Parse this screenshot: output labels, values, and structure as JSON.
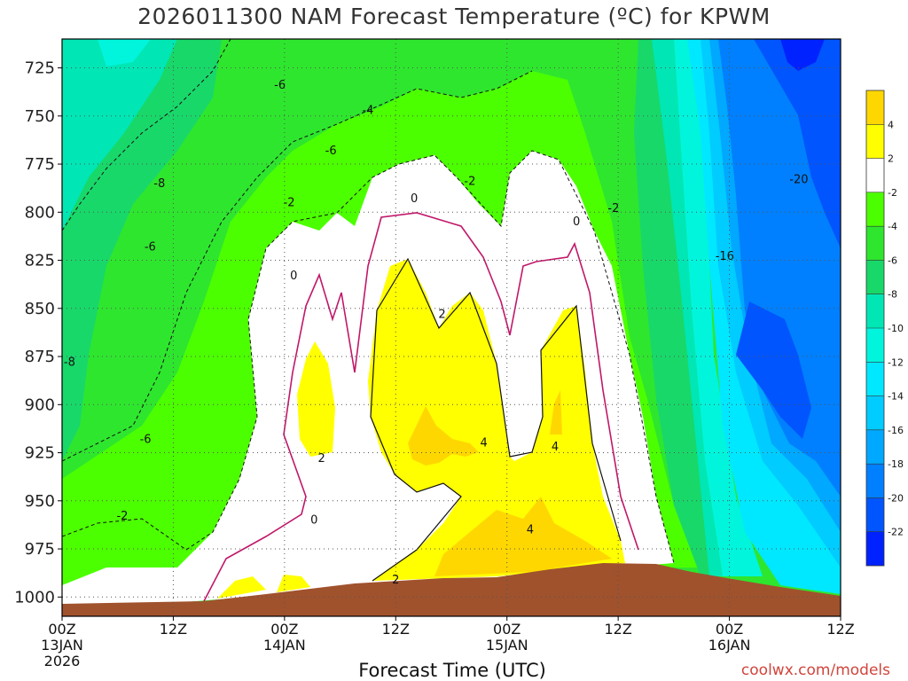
{
  "chart_data": {
    "type": "heatmap",
    "title": "2026011300 NAM Forecast Temperature (ºC) for KPWM",
    "xlabel": "Forecast Time (UTC)",
    "ylabel": "",
    "credit": "coolwx.com/models",
    "y_axis": {
      "range": [
        710,
        1010
      ],
      "ticks": [
        725,
        750,
        775,
        800,
        825,
        850,
        875,
        900,
        925,
        950,
        975,
        1000
      ],
      "inverted": true
    },
    "x_axis": {
      "range_hours": [
        0,
        84
      ],
      "ticks": [
        {
          "hour": 0,
          "lines": [
            "00Z",
            "13JAN",
            "2026"
          ]
        },
        {
          "hour": 12,
          "lines": [
            "12Z"
          ]
        },
        {
          "hour": 24,
          "lines": [
            "00Z",
            "14JAN"
          ]
        },
        {
          "hour": 36,
          "lines": [
            "12Z"
          ]
        },
        {
          "hour": 48,
          "lines": [
            "00Z",
            "15JAN"
          ]
        },
        {
          "hour": 60,
          "lines": [
            "12Z"
          ]
        },
        {
          "hour": 72,
          "lines": [
            "00Z",
            "16JAN"
          ]
        },
        {
          "hour": 84,
          "lines": [
            "12Z"
          ]
        }
      ]
    },
    "grid": true,
    "colorbar": {
      "levels": [
        4,
        2,
        -2,
        -4,
        -6,
        -8,
        -10,
        -12,
        -14,
        -16,
        -18,
        -20,
        -22
      ],
      "colors": [
        "#ffd700",
        "#ffff00",
        "#ffffff",
        "#4cff00",
        "#2ee62e",
        "#18d86a",
        "#00e6b4",
        "#00f5dc",
        "#00e8ff",
        "#00ccff",
        "#00a8ff",
        "#0080ff",
        "#0055ff",
        "#0022ff"
      ]
    },
    "contour_labels": [
      {
        "text": "-6",
        "hour": 9.5,
        "p": 818
      },
      {
        "text": "-8",
        "hour": 10.5,
        "p": 785
      },
      {
        "text": "-8",
        "hour": 0.8,
        "p": 878
      },
      {
        "text": "-6",
        "hour": 9,
        "p": 918
      },
      {
        "text": "-2",
        "hour": 6.5,
        "p": 958
      },
      {
        "text": "-6",
        "hour": 23.5,
        "p": 734
      },
      {
        "text": "-6",
        "hour": 29,
        "p": 768
      },
      {
        "text": "-4",
        "hour": 33,
        "p": 747
      },
      {
        "text": "-2",
        "hour": 24.5,
        "p": 795
      },
      {
        "text": "0",
        "hour": 25,
        "p": 833
      },
      {
        "text": "0",
        "hour": 38,
        "p": 793
      },
      {
        "text": "-2",
        "hour": 44,
        "p": 784
      },
      {
        "text": "0",
        "hour": 55.5,
        "p": 805
      },
      {
        "text": "-2",
        "hour": 59.5,
        "p": 798
      },
      {
        "text": "2",
        "hour": 41,
        "p": 853
      },
      {
        "text": "2",
        "hour": 28,
        "p": 928
      },
      {
        "text": "0",
        "hour": 27.2,
        "p": 960
      },
      {
        "text": "4",
        "hour": 45.5,
        "p": 920
      },
      {
        "text": "4",
        "hour": 53.2,
        "p": 922
      },
      {
        "text": "4",
        "hour": 50.5,
        "p": 965
      },
      {
        "text": "2",
        "hour": 36,
        "p": 991
      },
      {
        "text": "-16",
        "hour": 71.5,
        "p": 823
      },
      {
        "text": "-20",
        "hour": 79.5,
        "p": 783
      }
    ]
  }
}
